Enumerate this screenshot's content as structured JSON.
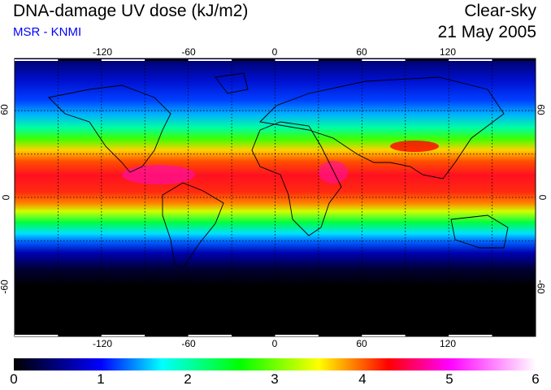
{
  "header": {
    "title": "DNA-damage UV dose (kJ/m2)",
    "source": "MSR - KNMI",
    "condition": "Clear-sky",
    "date": "21 May 2005"
  },
  "map": {
    "lon_labels": [
      "-120",
      "-60",
      "0",
      "60",
      "120"
    ],
    "lon_values": [
      -120,
      -60,
      0,
      60,
      120
    ],
    "lat_labels": [
      "60",
      "0",
      "-60"
    ],
    "lat_values": [
      60,
      0,
      -60
    ]
  },
  "colorbar": {
    "labels": [
      "0",
      "1",
      "2",
      "3",
      "4",
      "5",
      "6"
    ],
    "range": [
      0,
      6
    ],
    "stops": [
      {
        "v": 0,
        "c": "#000000"
      },
      {
        "v": 1,
        "c": "#0000ff"
      },
      {
        "v": 1.7,
        "c": "#00ffff"
      },
      {
        "v": 2.6,
        "c": "#00ff00"
      },
      {
        "v": 3.5,
        "c": "#ffff00"
      },
      {
        "v": 4.3,
        "c": "#ff0000"
      },
      {
        "v": 5.0,
        "c": "#ff00ff"
      },
      {
        "v": 6,
        "c": "#ffffff"
      }
    ]
  }
}
